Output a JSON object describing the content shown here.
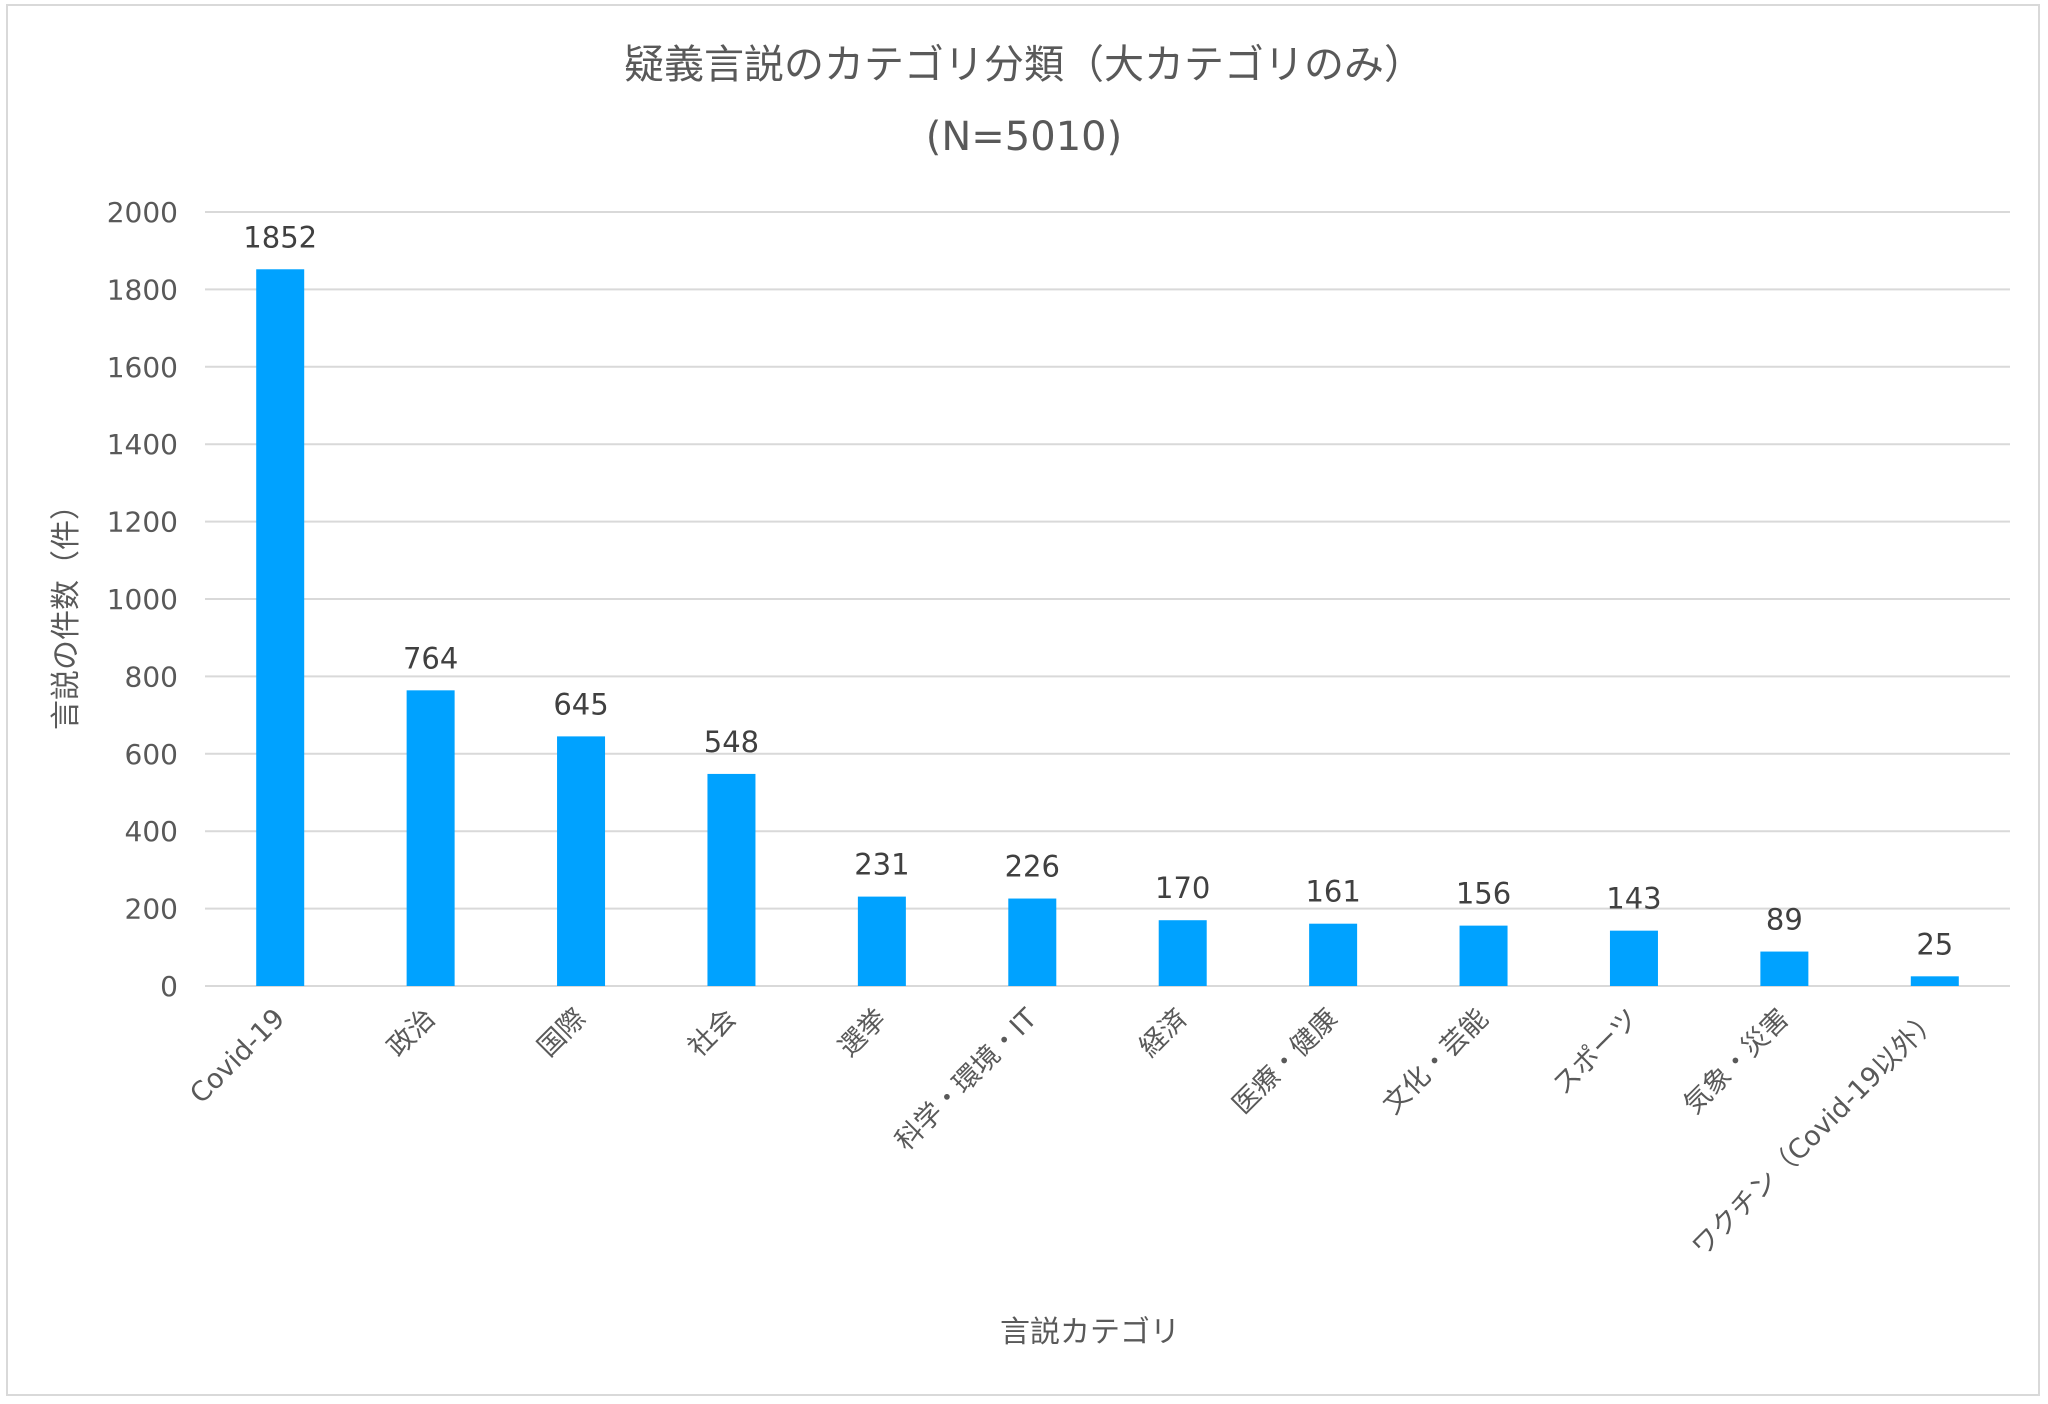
{
  "chart_data": {
    "type": "bar",
    "title": "疑義言説のカテゴリ分類（大カテゴリのみ）",
    "subtitle": "(N=5010)",
    "xlabel": "言説カテゴリ",
    "ylabel": "言説の件数（件）",
    "categories": [
      "Covid-19",
      "政治",
      "国際",
      "社会",
      "選挙",
      "科学・環境・IT",
      "経済",
      "医療・健康",
      "文化・芸能",
      "スポーツ",
      "気象・災害",
      "ワクチン（Covid-19以外）"
    ],
    "values": [
      1852,
      764,
      645,
      548,
      231,
      226,
      170,
      161,
      156,
      143,
      89,
      25
    ],
    "data_labels": [
      "1852",
      "764",
      "645",
      "548",
      "231",
      "226",
      "170",
      "161",
      "156",
      "143",
      "89",
      "25"
    ],
    "ylim": [
      0,
      2000
    ],
    "yticks": [
      "0",
      "200",
      "400",
      "600",
      "800",
      "1000",
      "1200",
      "1400",
      "1600",
      "1800",
      "2000"
    ],
    "grid": true,
    "legend": "none",
    "colors": {
      "bar": "#00A2FF",
      "grid": "#d9d9d9",
      "text": "#595959",
      "label": "#404040",
      "border": "#d9d9d9"
    }
  }
}
